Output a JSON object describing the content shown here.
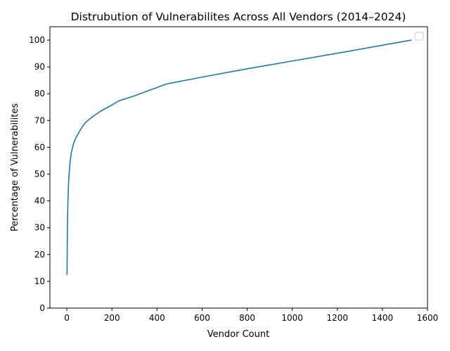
{
  "chart_data": {
    "type": "line",
    "title": "Distrubution of Vulnerabilites Across All Vendors (2014–2024)",
    "xlabel": "Vendor Count",
    "ylabel": "Percentage of Vulnerabilites",
    "xlim": [
      -75,
      1600
    ],
    "ylim": [
      0,
      105
    ],
    "xticks": [
      0,
      200,
      400,
      600,
      800,
      1000,
      1200,
      1400,
      1600
    ],
    "yticks": [
      0,
      10,
      20,
      30,
      40,
      50,
      60,
      70,
      80,
      90,
      100
    ],
    "grid": false,
    "legend": "top-right",
    "series": [
      {
        "color": "#1f77b4",
        "x": [
          1,
          2,
          3,
          5,
          7,
          10,
          15,
          20,
          30,
          40,
          50,
          60,
          70,
          80,
          100,
          120,
          150,
          200,
          230,
          300,
          350,
          400,
          440,
          600,
          800,
          1000,
          1200,
          1400,
          1527
        ],
        "y": [
          12.5,
          25,
          32,
          40,
          45,
          50,
          55,
          58,
          61.5,
          63.5,
          65,
          66.5,
          67.8,
          69,
          70.5,
          71.8,
          73.5,
          75.8,
          77.3,
          79.2,
          80.8,
          82.3,
          83.6,
          86.2,
          89.3,
          92.2,
          95.1,
          98.1,
          100
        ]
      }
    ]
  }
}
